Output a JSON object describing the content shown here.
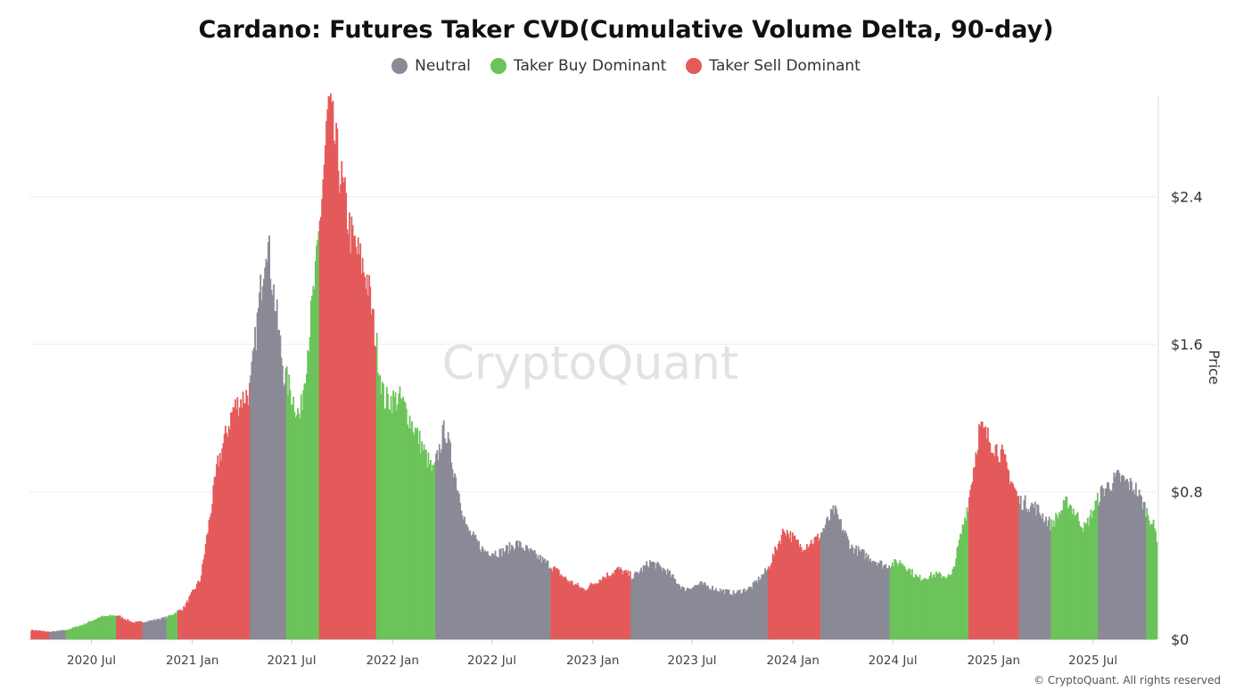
{
  "colors": {
    "neutral": "#8a8a96",
    "buy": "#6cc35a",
    "sell": "#e45a5a"
  },
  "watermark": "CryptoQuant",
  "copyright": "© CryptoQuant. All rights reserved",
  "chart_data": {
    "type": "bar",
    "title": "Cardano: Futures Taker CVD(Cumulative Volume Delta, 90-day)",
    "ylabel": "Price",
    "xlabel": "",
    "ylim": [
      0,
      2.95
    ],
    "y_ticks": [
      0,
      0.8,
      1.6,
      2.4
    ],
    "y_tick_labels": [
      "$0",
      "$0.8",
      "$1.6",
      "$2.4"
    ],
    "x_ticks": [
      "2020-07-01",
      "2021-01-01",
      "2021-07-01",
      "2022-01-01",
      "2022-07-01",
      "2023-01-01",
      "2023-07-01",
      "2024-01-01",
      "2024-07-01",
      "2025-01-01",
      "2025-07-01"
    ],
    "x_tick_labels": [
      "2020 Jul",
      "2021 Jan",
      "2021 Jul",
      "2022 Jan",
      "2022 Jul",
      "2023 Jan",
      "2023 Jul",
      "2024 Jan",
      "2024 Jul",
      "2025 Jan",
      "2025 Jul"
    ],
    "x_range": [
      "2020-03-10",
      "2025-10-25"
    ],
    "legend": [
      {
        "name": "Neutral",
        "key": "neutral"
      },
      {
        "name": "Taker Buy Dominant",
        "key": "buy"
      },
      {
        "name": "Taker Sell Dominant",
        "key": "sell"
      }
    ],
    "legend_position": "top-center",
    "grid": true,
    "series": [
      {
        "name": "Price",
        "points": [
          [
            "2020-03-15",
            0.05
          ],
          [
            "2020-04-15",
            0.04
          ],
          [
            "2020-05-15",
            0.05
          ],
          [
            "2020-06-15",
            0.08
          ],
          [
            "2020-07-15",
            0.12
          ],
          [
            "2020-08-15",
            0.13
          ],
          [
            "2020-09-15",
            0.09
          ],
          [
            "2020-10-15",
            0.1
          ],
          [
            "2020-11-15",
            0.12
          ],
          [
            "2020-12-15",
            0.17
          ],
          [
            "2021-01-15",
            0.33
          ],
          [
            "2021-02-15",
            0.95
          ],
          [
            "2021-03-15",
            1.25
          ],
          [
            "2021-04-15",
            1.35
          ],
          [
            "2021-05-15",
            2.2
          ],
          [
            "2021-06-15",
            1.45
          ],
          [
            "2021-07-15",
            1.2
          ],
          [
            "2021-08-15",
            2.05
          ],
          [
            "2021-09-05",
            2.9
          ],
          [
            "2021-10-15",
            2.2
          ],
          [
            "2021-11-15",
            1.95
          ],
          [
            "2021-12-15",
            1.3
          ],
          [
            "2022-01-15",
            1.3
          ],
          [
            "2022-02-15",
            1.1
          ],
          [
            "2022-03-15",
            0.9
          ],
          [
            "2022-04-05",
            1.15
          ],
          [
            "2022-05-15",
            0.6
          ],
          [
            "2022-06-15",
            0.48
          ],
          [
            "2022-07-15",
            0.47
          ],
          [
            "2022-08-15",
            0.52
          ],
          [
            "2022-09-15",
            0.46
          ],
          [
            "2022-10-15",
            0.4
          ],
          [
            "2022-11-15",
            0.32
          ],
          [
            "2022-12-15",
            0.27
          ],
          [
            "2023-01-15",
            0.33
          ],
          [
            "2023-02-15",
            0.38
          ],
          [
            "2023-03-15",
            0.34
          ],
          [
            "2023-04-15",
            0.42
          ],
          [
            "2023-05-15",
            0.37
          ],
          [
            "2023-06-15",
            0.27
          ],
          [
            "2023-07-15",
            0.3
          ],
          [
            "2023-08-15",
            0.27
          ],
          [
            "2023-09-15",
            0.25
          ],
          [
            "2023-10-15",
            0.28
          ],
          [
            "2023-11-15",
            0.38
          ],
          [
            "2023-12-15",
            0.6
          ],
          [
            "2024-01-15",
            0.5
          ],
          [
            "2024-02-15",
            0.55
          ],
          [
            "2024-03-15",
            0.7
          ],
          [
            "2024-04-15",
            0.5
          ],
          [
            "2024-05-15",
            0.45
          ],
          [
            "2024-06-15",
            0.4
          ],
          [
            "2024-07-15",
            0.42
          ],
          [
            "2024-08-15",
            0.33
          ],
          [
            "2024-09-15",
            0.35
          ],
          [
            "2024-10-15",
            0.34
          ],
          [
            "2024-11-15",
            0.75
          ],
          [
            "2024-12-05",
            1.15
          ],
          [
            "2025-01-15",
            1.0
          ],
          [
            "2025-02-15",
            0.75
          ],
          [
            "2025-03-15",
            0.72
          ],
          [
            "2025-04-15",
            0.62
          ],
          [
            "2025-05-15",
            0.75
          ],
          [
            "2025-06-15",
            0.6
          ],
          [
            "2025-07-15",
            0.8
          ],
          [
            "2025-08-15",
            0.88
          ],
          [
            "2025-09-15",
            0.82
          ],
          [
            "2025-10-15",
            0.64
          ],
          [
            "2025-10-25",
            0.55
          ]
        ]
      }
    ],
    "regimes": [
      {
        "start": "2020-03-10",
        "end": "2020-04-15",
        "state": "sell"
      },
      {
        "start": "2020-04-15",
        "end": "2020-05-15",
        "state": "neutral"
      },
      {
        "start": "2020-05-15",
        "end": "2020-08-15",
        "state": "buy"
      },
      {
        "start": "2020-08-15",
        "end": "2020-10-01",
        "state": "sell"
      },
      {
        "start": "2020-10-01",
        "end": "2020-11-15",
        "state": "neutral"
      },
      {
        "start": "2020-11-15",
        "end": "2020-12-05",
        "state": "buy"
      },
      {
        "start": "2020-12-05",
        "end": "2021-04-15",
        "state": "sell"
      },
      {
        "start": "2021-04-15",
        "end": "2021-06-20",
        "state": "neutral"
      },
      {
        "start": "2021-06-20",
        "end": "2021-08-20",
        "state": "buy"
      },
      {
        "start": "2021-08-20",
        "end": "2021-12-01",
        "state": "sell"
      },
      {
        "start": "2021-12-01",
        "end": "2022-03-20",
        "state": "buy"
      },
      {
        "start": "2022-03-20",
        "end": "2022-10-15",
        "state": "neutral"
      },
      {
        "start": "2022-10-15",
        "end": "2023-03-10",
        "state": "sell"
      },
      {
        "start": "2023-03-10",
        "end": "2023-11-15",
        "state": "neutral"
      },
      {
        "start": "2023-11-15",
        "end": "2024-02-20",
        "state": "sell"
      },
      {
        "start": "2024-02-20",
        "end": "2024-06-25",
        "state": "neutral"
      },
      {
        "start": "2024-06-25",
        "end": "2024-11-15",
        "state": "buy"
      },
      {
        "start": "2024-11-15",
        "end": "2025-02-15",
        "state": "sell"
      },
      {
        "start": "2025-02-15",
        "end": "2025-04-15",
        "state": "neutral"
      },
      {
        "start": "2025-04-15",
        "end": "2025-07-10",
        "state": "buy"
      },
      {
        "start": "2025-07-10",
        "end": "2025-10-05",
        "state": "neutral"
      },
      {
        "start": "2025-10-05",
        "end": "2025-10-25",
        "state": "buy"
      }
    ]
  }
}
